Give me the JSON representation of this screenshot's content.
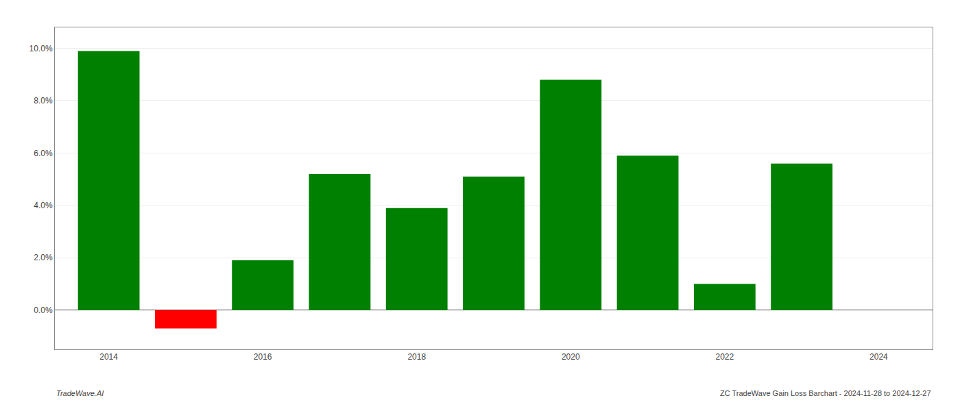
{
  "chart_data": {
    "type": "bar",
    "x": [
      2014,
      2015,
      2016,
      2017,
      2018,
      2019,
      2020,
      2021,
      2022,
      2023
    ],
    "values": [
      0.099,
      -0.007,
      0.019,
      0.052,
      0.039,
      0.051,
      0.088,
      0.059,
      0.01,
      0.056
    ],
    "colors": [
      "#008000",
      "#ff0000",
      "#008000",
      "#008000",
      "#008000",
      "#008000",
      "#008000",
      "#008000",
      "#008000",
      "#008000"
    ],
    "xlim": [
      2013.3,
      2024.7
    ],
    "xticks": [
      2014,
      2016,
      2018,
      2020,
      2022,
      2024
    ],
    "ylim": [
      -0.015,
      0.108
    ],
    "yticks": [
      {
        "value": 0.0,
        "label": "0.0%"
      },
      {
        "value": 0.02,
        "label": "2.0%"
      },
      {
        "value": 0.04,
        "label": "4.0%"
      },
      {
        "value": 0.06,
        "label": "6.0%"
      },
      {
        "value": 0.08,
        "label": "8.0%"
      },
      {
        "value": 0.1,
        "label": "10.0%"
      }
    ],
    "grid": true,
    "annotations": [
      "TradeWave.AI",
      "ZC TradeWave Gain Loss Barchart - 2024-11-28 to 2024-12-27"
    ]
  }
}
